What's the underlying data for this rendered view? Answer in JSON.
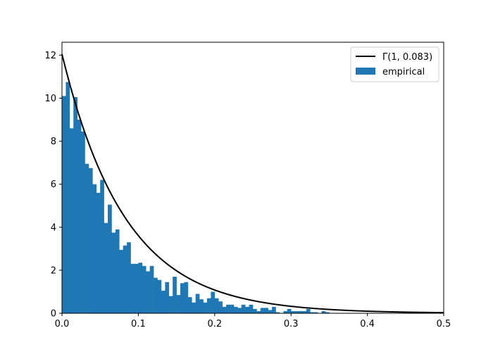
{
  "chart_data": {
    "type": "bar",
    "title": "",
    "xlabel": "",
    "ylabel": "",
    "xlim": [
      0,
      0.5
    ],
    "ylim": [
      0,
      12.6
    ],
    "grid": false,
    "legend_position": "top-right",
    "x_ticks": [
      0.0,
      0.1,
      0.2,
      0.3,
      0.4,
      0.5
    ],
    "x_tick_labels": [
      "0.0",
      "0.1",
      "0.2",
      "0.3",
      "0.4",
      "0.5"
    ],
    "y_ticks": [
      0,
      2,
      4,
      6,
      8,
      10,
      12
    ],
    "y_tick_labels": [
      "0",
      "2",
      "4",
      "6",
      "8",
      "10",
      "12"
    ],
    "histogram": {
      "name": "empirical",
      "color": "#1f77b4",
      "bin_width": 0.005,
      "bin_start": 0.0,
      "values": [
        10.1,
        10.75,
        8.6,
        10.05,
        9.0,
        8.45,
        6.95,
        6.75,
        6.0,
        5.6,
        6.2,
        4.2,
        5.05,
        3.75,
        3.9,
        2.95,
        3.15,
        3.3,
        2.3,
        2.3,
        2.35,
        2.2,
        1.95,
        2.2,
        1.65,
        1.55,
        1.05,
        1.45,
        0.8,
        1.7,
        0.85,
        1.4,
        1.45,
        0.75,
        0.5,
        0.9,
        0.65,
        0.5,
        0.7,
        1.0,
        0.7,
        0.55,
        0.3,
        0.4,
        0.4,
        0.3,
        0.25,
        0.4,
        0.3,
        0.4,
        0.2,
        0.1,
        0.25,
        0.25,
        0.15,
        0.3,
        0.05,
        0.0,
        0.1,
        0.2,
        0.1,
        0.1,
        0.1,
        0.1,
        0.2,
        0.05,
        0.05,
        0.0,
        0.1,
        0.05
      ]
    },
    "series": [
      {
        "name": "Γ(1, 0.083)",
        "color": "#000000",
        "type": "line",
        "function": "gamma_pdf",
        "shape": 1,
        "scale": 0.083
      }
    ],
    "legend": [
      {
        "label": "Γ(1, 0.083)",
        "kind": "line",
        "color": "#000000"
      },
      {
        "label": "empirical",
        "kind": "patch",
        "color": "#1f77b4"
      }
    ]
  }
}
